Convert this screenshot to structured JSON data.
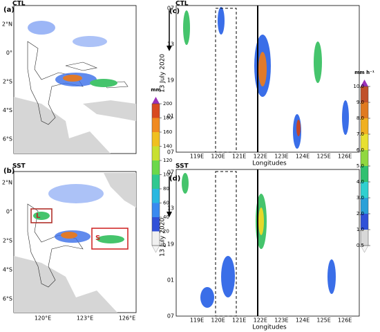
{
  "panels": [
    {
      "label": "(a)",
      "run": "CTL",
      "lat_labels": [
        "2°N",
        "0°",
        "2°S",
        "4°S",
        "6°S"
      ],
      "lon_labels": []
    },
    {
      "label": "(b)",
      "run": "SST",
      "lat_labels": [
        "2°N",
        "0°",
        "2°S",
        "4°S",
        "6°S"
      ],
      "lon_labels": [
        "120°E",
        "123°E",
        "126°E"
      ],
      "boxes": [
        "L",
        "S"
      ]
    },
    {
      "label": "(c)",
      "run": "CTL",
      "y_labels": [
        "07",
        "13",
        "19",
        "01",
        "07"
      ],
      "x_labels": [
        "119E",
        "120E",
        "121E",
        "122E",
        "123E",
        "124E",
        "125E",
        "126E"
      ],
      "xlabel": "Longitudes",
      "ylabel": "13 July 2020"
    },
    {
      "label": "(d)",
      "run": "SST",
      "y_labels": [
        "07",
        "13",
        "19",
        "01",
        "07"
      ],
      "x_labels": [
        "119E",
        "120E",
        "121E",
        "122E",
        "123E",
        "124E",
        "125E",
        "126E"
      ],
      "xlabel": "Longitudes",
      "ylabel": "13 July 2020"
    }
  ],
  "colorbars": [
    {
      "unit": "mm",
      "ticks": [
        "0",
        "20",
        "40",
        "60",
        "80",
        "100",
        "120",
        "140",
        "160",
        "180",
        "200"
      ]
    },
    {
      "unit": "mm h⁻¹",
      "ticks": [
        "0.5",
        "1.0",
        "2.0",
        "3.0",
        "4.0",
        "5.0",
        "6.0",
        "7.0",
        "8.0",
        "9.0",
        "10.0"
      ]
    }
  ]
}
